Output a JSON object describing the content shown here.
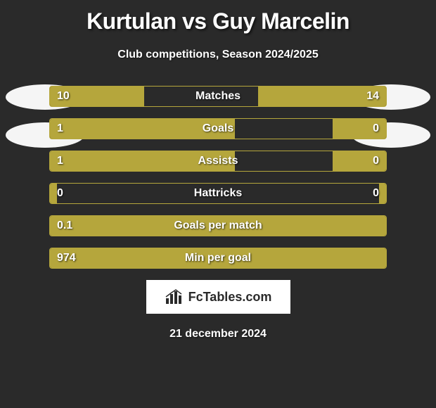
{
  "title": "Kurtulan vs Guy Marcelin",
  "subtitle": "Club competitions, Season 2024/2025",
  "date": "21 december 2024",
  "branding": {
    "text": "FcTables.com"
  },
  "colors": {
    "background": "#2a2a2a",
    "bar_fill": "#b5a63c",
    "bar_border": "#b5a63c",
    "text": "#ffffff",
    "avatar": "#f5f5f5",
    "branding_bg": "#ffffff",
    "branding_text": "#2a2a2a"
  },
  "stats": [
    {
      "label": "Matches",
      "left_value": "10",
      "right_value": "14",
      "left_width_pct": 28,
      "right_width_pct": 38
    },
    {
      "label": "Goals",
      "left_value": "1",
      "right_value": "0",
      "left_width_pct": 55,
      "right_width_pct": 16
    },
    {
      "label": "Assists",
      "left_value": "1",
      "right_value": "0",
      "left_width_pct": 55,
      "right_width_pct": 16
    },
    {
      "label": "Hattricks",
      "left_value": "0",
      "right_value": "0",
      "left_width_pct": 2,
      "right_width_pct": 2
    },
    {
      "label": "Goals per match",
      "left_value": "0.1",
      "right_value": "",
      "left_width_pct": 100,
      "right_width_pct": 0
    },
    {
      "label": "Min per goal",
      "left_value": "974",
      "right_value": "",
      "left_width_pct": 100,
      "right_width_pct": 0
    }
  ]
}
